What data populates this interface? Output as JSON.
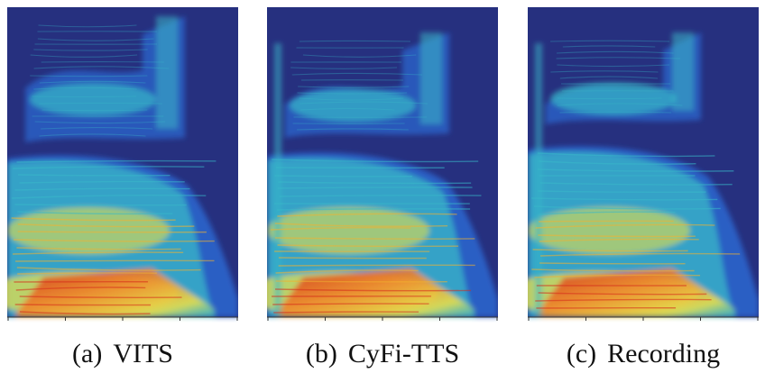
{
  "panels": [
    {
      "id": "a",
      "tag": "(a)",
      "label": "VITS",
      "variant": "vits"
    },
    {
      "id": "b",
      "tag": "(b)",
      "label": "CyFi-TTS",
      "variant": "cyfi"
    },
    {
      "id": "c",
      "tag": "(c)",
      "label": "Recording",
      "variant": "recording"
    }
  ],
  "colors": {
    "background": "#26307f",
    "low": "#2a5fc4",
    "mid": "#38b8c8",
    "high": "#e8e04a",
    "peak": "#d62b1b"
  }
}
